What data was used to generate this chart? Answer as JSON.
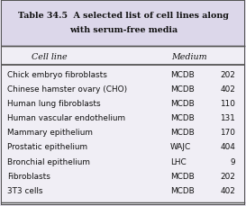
{
  "title_line1": "Table 34.5  A selected list of cell lines along",
  "title_line2": "with serum-free media",
  "col_headers": [
    "Cell line",
    "Medium"
  ],
  "rows": [
    [
      "Chick embryo fibroblasts",
      "MCDB",
      "202"
    ],
    [
      "Chinese hamster ovary (CHO)",
      "MCDB",
      "402"
    ],
    [
      "Human lung fibroblasts",
      "MCDB",
      "110"
    ],
    [
      "Human vascular endothelium",
      "MCDB",
      "131"
    ],
    [
      "Mammary epithelium",
      "MCDB",
      "170"
    ],
    [
      "Prostatic epithelium",
      "WAJC",
      "404"
    ],
    [
      "Bronchial epithelium",
      "LHC",
      "9"
    ],
    [
      "Fibroblasts",
      "MCDB",
      "202"
    ],
    [
      "3T3 cells",
      "MCDB",
      "402"
    ]
  ],
  "outer_bg": "#e8e4ef",
  "title_bg": "#dcd7ea",
  "table_bg": "#f0eef5",
  "border_color": "#555555",
  "line_color": "#888888",
  "text_color": "#111111",
  "title_fontsize": 6.8,
  "header_fontsize": 6.8,
  "row_fontsize": 6.4
}
